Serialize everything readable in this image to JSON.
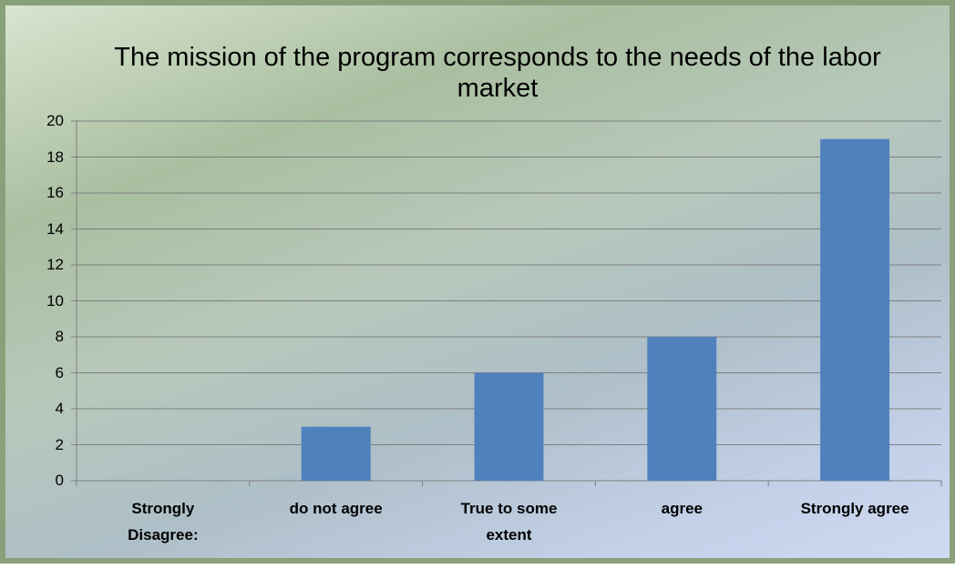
{
  "chart_data": {
    "type": "bar",
    "title": "The mission of the program corresponds to the needs of the labor market",
    "categories": [
      "Strongly Disagree:",
      "do not agree",
      "True to some extent",
      "agree",
      "Strongly agree"
    ],
    "values": [
      0,
      3,
      6,
      8,
      19
    ],
    "color": "#4f81bd",
    "ylim": [
      0,
      20
    ],
    "yticks": [
      0,
      2,
      4,
      6,
      8,
      10,
      12,
      14,
      16,
      18,
      20
    ],
    "grid": true
  }
}
